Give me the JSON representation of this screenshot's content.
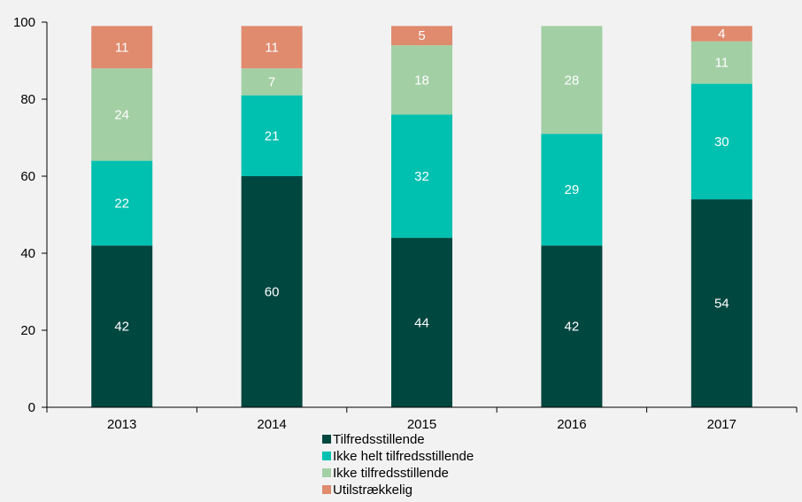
{
  "chart_data": {
    "type": "bar",
    "stacked": true,
    "categories": [
      "2013",
      "2014",
      "2015",
      "2016",
      "2017"
    ],
    "series": [
      {
        "name": "Tilfredsstillende",
        "color": "#004740",
        "values": [
          42,
          60,
          44,
          42,
          54
        ]
      },
      {
        "name": "Ikke helt tilfredsstillende",
        "color": "#00c0b0",
        "values": [
          22,
          21,
          32,
          29,
          30
        ]
      },
      {
        "name": "Ikke tilfredsstillende",
        "color": "#a3cfa5",
        "values": [
          24,
          7,
          18,
          28,
          11
        ]
      },
      {
        "name": "Utilstrækkelig",
        "color": "#e08a6e",
        "values": [
          11,
          11,
          5,
          null,
          4
        ]
      }
    ],
    "data_labels": [
      [
        "42",
        "60",
        "44",
        "42",
        "54"
      ],
      [
        "22",
        "21",
        "32",
        "29",
        "30"
      ],
      [
        "24",
        "7",
        "18",
        "28",
        "11"
      ],
      [
        "11",
        "11",
        "5",
        "",
        "4"
      ]
    ],
    "ylim": [
      0,
      100
    ],
    "yticks": [
      "0",
      "20",
      "40",
      "60",
      "80",
      "100"
    ],
    "title": "",
    "xlabel": "",
    "ylabel": "",
    "grid": false,
    "legend_position": "bottom",
    "label_color": "#ffffff",
    "axis_color": "#000000"
  }
}
